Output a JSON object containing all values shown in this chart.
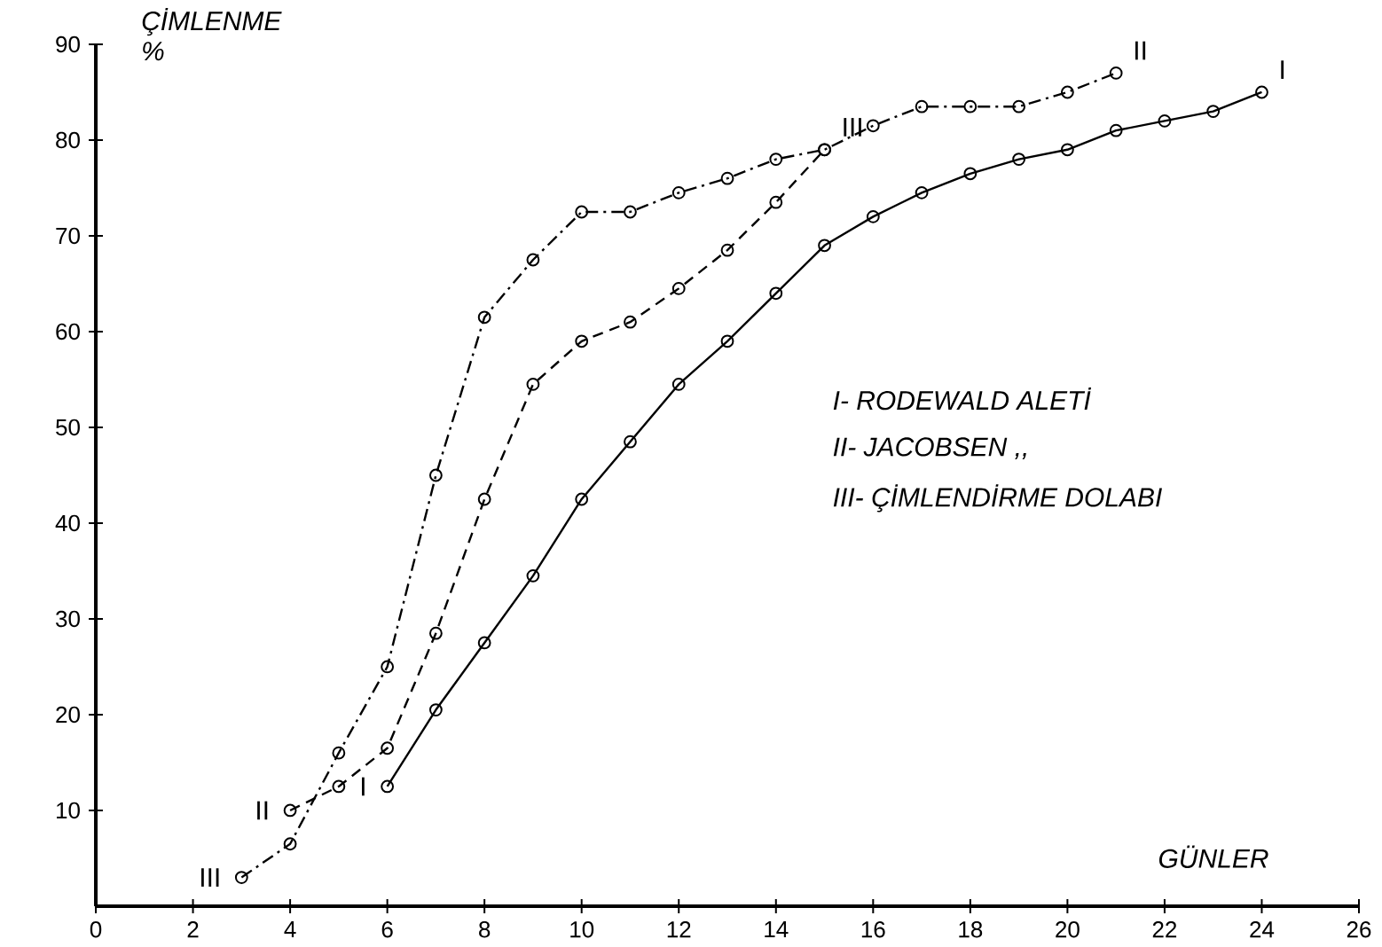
{
  "chart_data": {
    "type": "line",
    "xlabel": "GÜNLER",
    "ylabel": "ÇİMLENME %",
    "xlim": [
      0,
      26
    ],
    "ylim": [
      0,
      90
    ],
    "xticks": [
      0,
      2,
      4,
      6,
      8,
      10,
      12,
      14,
      16,
      18,
      20,
      22,
      24,
      26
    ],
    "yticks": [
      10,
      20,
      30,
      40,
      50,
      60,
      70,
      80,
      90
    ],
    "marker": "circle",
    "grid": false,
    "series": [
      {
        "color": "#000000",
        "line_style": "solid",
        "x": [
          6,
          7,
          8,
          9,
          10,
          11,
          12,
          13,
          14,
          15,
          16,
          17,
          18,
          19,
          20,
          21,
          22,
          23,
          24
        ],
        "values": [
          12.5,
          20.5,
          27.5,
          34.5,
          42.5,
          48.5,
          54.5,
          59,
          64,
          69,
          72,
          74.5,
          76.5,
          78,
          79,
          81,
          82,
          83,
          85
        ]
      },
      {
        "color": "#000000",
        "line_style": "dashed",
        "x": [
          4,
          5,
          6,
          7,
          8,
          9,
          10,
          11,
          12,
          13,
          14,
          15
        ],
        "values": [
          10,
          12.5,
          16.5,
          28.5,
          42.5,
          54.5,
          59,
          61,
          64.5,
          68.5,
          73.5,
          79
        ]
      },
      {
        "color": "#000000",
        "line_style": "dashdot",
        "x": [
          3,
          4,
          5,
          6,
          7,
          8,
          9,
          10,
          11,
          12,
          13,
          14,
          15,
          16,
          17,
          18,
          19,
          20,
          21
        ],
        "values": [
          3,
          6.5,
          16,
          25,
          45,
          61.5,
          67.5,
          72.5,
          72.5,
          74.5,
          76,
          78,
          79,
          81.5,
          83.5,
          83.5,
          83.5,
          85,
          87
        ]
      }
    ],
    "annotations": [
      {
        "text": "I",
        "x": 24,
        "y": 85
      },
      {
        "text": "II",
        "x": 21,
        "y": 87
      },
      {
        "text": "III",
        "x": 15,
        "y": 79
      },
      {
        "text": "II",
        "x": 4,
        "y": 10
      },
      {
        "text": "I",
        "x": 6,
        "y": 12.5
      },
      {
        "text": "III",
        "x": 3,
        "y": 3
      },
      "I- RODEWALD ALETİ",
      "II- JACOBSEN    ,,",
      "III- ÇİMLENDİRME DOLABI"
    ]
  }
}
